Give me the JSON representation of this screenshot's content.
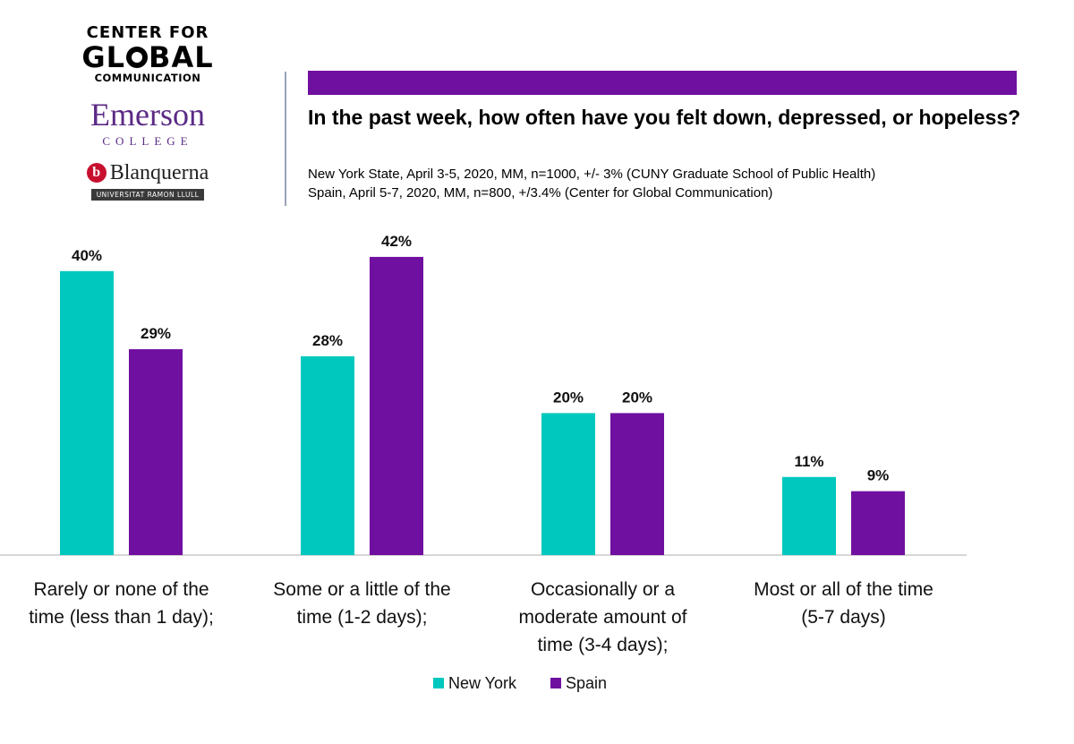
{
  "logos": {
    "cgc_line1": "CENTER FOR",
    "cgc_line2a": "GL",
    "cgc_line2b": "BAL",
    "cgc_line3": "COMMUNICATION",
    "emerson_name": "Emerson",
    "emerson_sub": "COLLEGE",
    "blanquerna_badge": "b",
    "blanquerna_name": "Blanquerna",
    "blanquerna_sub": "UNIVERSITAT RAMON LLULL"
  },
  "colors": {
    "new_york": "#00c8be",
    "spain": "#7010a0",
    "axis": "#c8c8c8"
  },
  "chart_data": {
    "type": "bar",
    "title": "In the past week, how often have you felt down, depressed, or hopeless?",
    "subtitle_lines": [
      "New York State, April 3-5, 2020, MM, n=1000, +/- 3% (CUNY Graduate School of Public Health)",
      "Spain, April 5-7, 2020, MM, n=800, +/3.4% (Center for Global Communication)"
    ],
    "categories": [
      [
        "Rarely or none of the",
        "time (less than 1 day);"
      ],
      [
        "Some or a little of the",
        "time (1-2 days);"
      ],
      [
        "Occasionally or a",
        "moderate amount of",
        "time (3-4 days);"
      ],
      [
        "Most or all of the time",
        "(5-7 days)"
      ]
    ],
    "series": [
      {
        "name": "New York",
        "values": [
          40,
          28,
          20,
          11
        ],
        "labels": [
          "40%",
          "28%",
          "20%",
          "11%"
        ]
      },
      {
        "name": "Spain",
        "values": [
          29,
          42,
          20,
          9
        ],
        "labels": [
          "29%",
          "42%",
          "20%",
          "9%"
        ]
      }
    ],
    "ylim": [
      0,
      42
    ],
    "legend_position": "bottom",
    "grid": false
  }
}
